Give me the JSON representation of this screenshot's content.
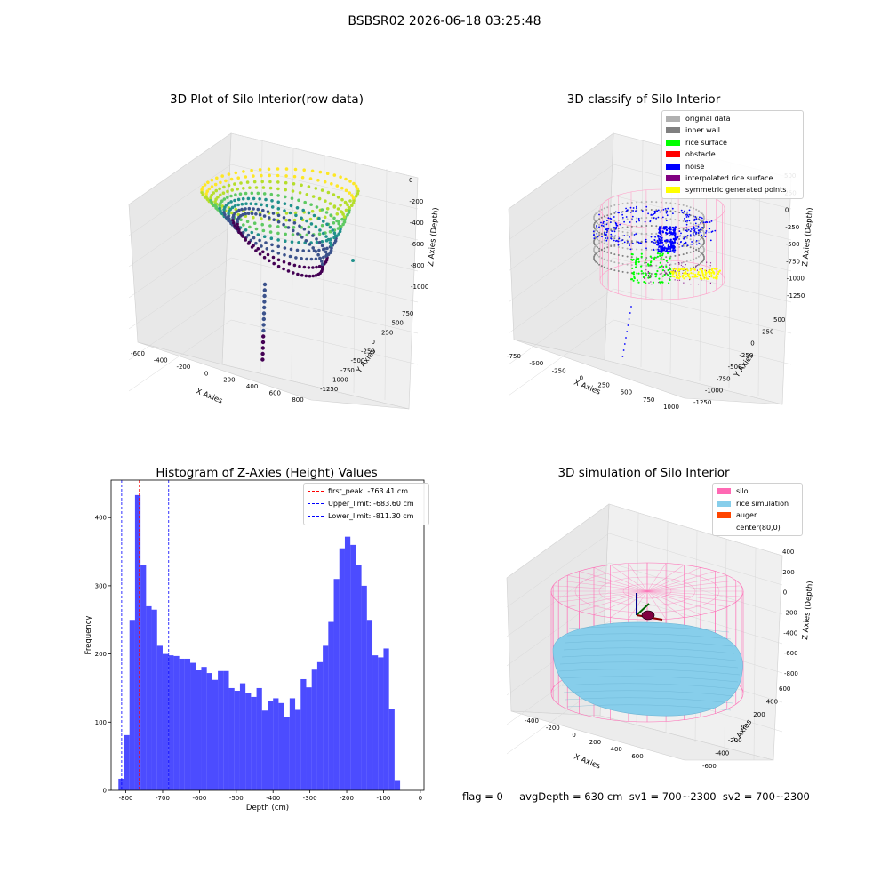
{
  "suptitle": "BSBSR02 2026-06-18 03:25:48",
  "panels": {
    "raw": {
      "title": "3D Plot of Silo Interior(row data)",
      "xlabel": "X Axies",
      "ylabel": "Y Axies",
      "zlabel": "Z Axies (Depth)",
      "xticks": [
        "-600",
        "-400",
        "-200",
        "0",
        "200",
        "400",
        "600",
        "800"
      ],
      "yticks": [
        "750",
        "500",
        "250",
        "0",
        "-250",
        "-500",
        "-750",
        "-1000",
        "-1250"
      ],
      "zticks": [
        "0",
        "-200",
        "-400",
        "-600",
        "-800",
        "-1000"
      ]
    },
    "classify": {
      "title": "3D classify of Silo Interior",
      "xlabel": "X Axies",
      "ylabel": "Y Axies",
      "zlabel": "Z Axies (Depth)",
      "xticks": [
        "-750",
        "-500",
        "-250",
        "0",
        "250",
        "500",
        "750",
        "1000"
      ],
      "yticks": [
        "500",
        "250",
        "0",
        "-250",
        "-500",
        "-750",
        "-1000",
        "-1250"
      ],
      "zticks": [
        "500",
        "250",
        "0",
        "-250",
        "-500",
        "-750",
        "-1000",
        "-1250"
      ],
      "legend": [
        {
          "label": "original data",
          "color": "#b0b0b0"
        },
        {
          "label": "inner wall",
          "color": "#808080"
        },
        {
          "label": "rice surface",
          "color": "#00ff00"
        },
        {
          "label": "obstacle",
          "color": "#ff0000"
        },
        {
          "label": "noise",
          "color": "#0000ff"
        },
        {
          "label": "interpolated rice surface",
          "color": "#800080"
        },
        {
          "label": "symmetric generated points",
          "color": "#ffff00"
        }
      ]
    },
    "simulation": {
      "title": "3D simulation of Silo Interior",
      "xlabel": "X Axies",
      "ylabel": "Y Axies",
      "zlabel": "Z Axies (Depth)",
      "xticks": [
        "-400",
        "-200",
        "0",
        "200",
        "400",
        "600"
      ],
      "yticks": [
        "600",
        "400",
        "200",
        "0",
        "-200",
        "-400",
        "-600"
      ],
      "zticks": [
        "400",
        "200",
        "0",
        "-200",
        "-400",
        "-600",
        "-800"
      ],
      "legend": [
        {
          "label": "silo",
          "color": "#ff69b4"
        },
        {
          "label": "rice simulation",
          "color": "#87ceeb"
        },
        {
          "label": "auger",
          "color": "#ff4500"
        },
        {
          "label": "center(80,0)",
          "color": ""
        }
      ]
    }
  },
  "footer": "flag = 0     avgDepth = 630 cm  sv1 = 700~2300  sv2 = 700~2300",
  "chart_data": {
    "type": "bar",
    "title": "Histogram of Z-Axies (Height) Values",
    "xlabel": "Depth (cm)",
    "ylabel": "Frequency",
    "xlim": [
      -840,
      10
    ],
    "ylim": [
      0,
      455
    ],
    "bar_color": "#0000ff",
    "bins": [
      {
        "x0": -820,
        "x1": -805,
        "value": 17
      },
      {
        "x0": -805,
        "x1": -790,
        "value": 81
      },
      {
        "x0": -790,
        "x1": -775,
        "value": 250
      },
      {
        "x0": -775,
        "x1": -760,
        "value": 433
      },
      {
        "x0": -760,
        "x1": -745,
        "value": 330
      },
      {
        "x0": -745,
        "x1": -730,
        "value": 270
      },
      {
        "x0": -730,
        "x1": -715,
        "value": 265
      },
      {
        "x0": -715,
        "x1": -700,
        "value": 212
      },
      {
        "x0": -700,
        "x1": -685,
        "value": 200
      },
      {
        "x0": -685,
        "x1": -670,
        "value": 198
      },
      {
        "x0": -670,
        "x1": -655,
        "value": 197
      },
      {
        "x0": -655,
        "x1": -640,
        "value": 193
      },
      {
        "x0": -640,
        "x1": -625,
        "value": 193
      },
      {
        "x0": -625,
        "x1": -610,
        "value": 187
      },
      {
        "x0": -610,
        "x1": -595,
        "value": 176
      },
      {
        "x0": -595,
        "x1": -580,
        "value": 181
      },
      {
        "x0": -580,
        "x1": -565,
        "value": 172
      },
      {
        "x0": -565,
        "x1": -550,
        "value": 162
      },
      {
        "x0": -550,
        "x1": -535,
        "value": 175
      },
      {
        "x0": -535,
        "x1": -520,
        "value": 175
      },
      {
        "x0": -520,
        "x1": -505,
        "value": 150
      },
      {
        "x0": -505,
        "x1": -490,
        "value": 146
      },
      {
        "x0": -490,
        "x1": -475,
        "value": 157
      },
      {
        "x0": -475,
        "x1": -460,
        "value": 143
      },
      {
        "x0": -460,
        "x1": -445,
        "value": 137
      },
      {
        "x0": -445,
        "x1": -430,
        "value": 150
      },
      {
        "x0": -430,
        "x1": -415,
        "value": 117
      },
      {
        "x0": -415,
        "x1": -400,
        "value": 131
      },
      {
        "x0": -400,
        "x1": -385,
        "value": 135
      },
      {
        "x0": -385,
        "x1": -370,
        "value": 128
      },
      {
        "x0": -370,
        "x1": -355,
        "value": 108
      },
      {
        "x0": -355,
        "x1": -340,
        "value": 135
      },
      {
        "x0": -340,
        "x1": -325,
        "value": 118
      },
      {
        "x0": -325,
        "x1": -310,
        "value": 163
      },
      {
        "x0": -310,
        "x1": -295,
        "value": 151
      },
      {
        "x0": -295,
        "x1": -280,
        "value": 177
      },
      {
        "x0": -280,
        "x1": -265,
        "value": 188
      },
      {
        "x0": -265,
        "x1": -250,
        "value": 212
      },
      {
        "x0": -250,
        "x1": -235,
        "value": 247
      },
      {
        "x0": -235,
        "x1": -220,
        "value": 310
      },
      {
        "x0": -220,
        "x1": -205,
        "value": 355
      },
      {
        "x0": -205,
        "x1": -190,
        "value": 372
      },
      {
        "x0": -190,
        "x1": -175,
        "value": 360
      },
      {
        "x0": -175,
        "x1": -160,
        "value": 330
      },
      {
        "x0": -160,
        "x1": -145,
        "value": 300
      },
      {
        "x0": -145,
        "x1": -130,
        "value": 250
      },
      {
        "x0": -130,
        "x1": -115,
        "value": 198
      },
      {
        "x0": -115,
        "x1": -100,
        "value": 195
      },
      {
        "x0": -100,
        "x1": -85,
        "value": 208
      },
      {
        "x0": -85,
        "x1": -70,
        "value": 119
      },
      {
        "x0": -70,
        "x1": -55,
        "value": 15
      }
    ],
    "xticks": [
      -800,
      -700,
      -600,
      -500,
      -400,
      -300,
      -200,
      -100,
      0
    ],
    "yticks": [
      0,
      100,
      200,
      300,
      400
    ],
    "vlines": [
      {
        "x": -763.41,
        "color": "#ff0000",
        "label": "first_peak: -763.41 cm"
      },
      {
        "x": -683.6,
        "color": "#0000ff",
        "label": "Upper_limit: -683.60 cm"
      },
      {
        "x": -811.3,
        "color": "#0000ff",
        "label": "Lower_limit: -811.30 cm"
      }
    ]
  }
}
